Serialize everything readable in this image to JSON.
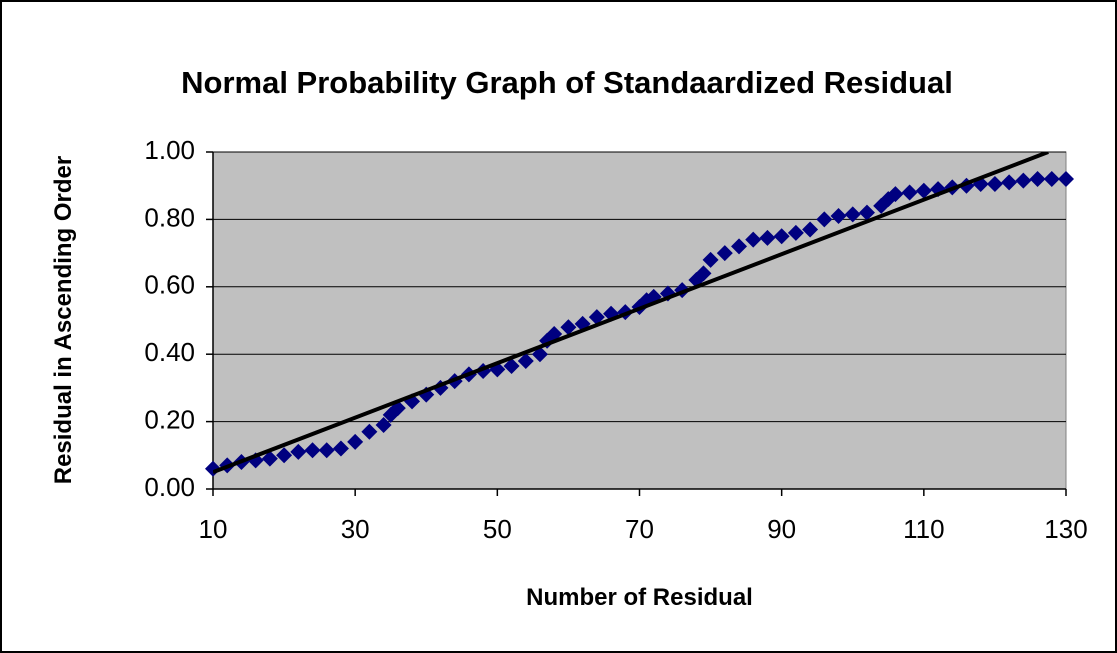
{
  "chart_data": {
    "type": "scatter",
    "title": "Normal Probability Graph of Standaardized Residual",
    "x_label": "Number of Residual",
    "y_label": "Residual in Ascending Order",
    "xlim": [
      10,
      130
    ],
    "xticks": [
      10,
      30,
      50,
      70,
      90,
      110,
      130
    ],
    "ylim": [
      0,
      1
    ],
    "yticks": [
      {
        "value": 0,
        "label": "0.00"
      },
      {
        "value": 0.2,
        "label": "0.20"
      },
      {
        "value": 0.4,
        "label": "0.40"
      },
      {
        "value": 0.6,
        "label": "0.60"
      },
      {
        "value": 0.8,
        "label": "0.80"
      },
      {
        "value": 1,
        "label": "1.00"
      }
    ],
    "grid": true,
    "background": "#c0c0c0",
    "series": [
      {
        "style": "markers",
        "color": "#000080",
        "x": [
          10,
          12,
          14,
          16,
          18,
          20,
          22,
          24,
          26,
          28,
          30,
          32,
          34,
          35,
          36,
          38,
          40,
          42,
          44,
          46,
          48,
          50,
          52,
          54,
          56,
          57,
          58,
          60,
          62,
          64,
          66,
          68,
          70,
          71,
          72,
          74,
          76,
          78,
          79,
          80,
          82,
          84,
          86,
          88,
          90,
          92,
          94,
          96,
          98,
          100,
          102,
          104,
          105,
          106,
          108,
          110,
          112,
          114,
          116,
          118,
          120,
          122,
          124,
          126,
          128,
          130
        ],
        "values": [
          0.06,
          0.07,
          0.08,
          0.085,
          0.09,
          0.1,
          0.11,
          0.115,
          0.115,
          0.12,
          0.14,
          0.17,
          0.19,
          0.22,
          0.24,
          0.26,
          0.28,
          0.3,
          0.32,
          0.34,
          0.35,
          0.355,
          0.365,
          0.38,
          0.4,
          0.44,
          0.46,
          0.48,
          0.49,
          0.51,
          0.52,
          0.525,
          0.54,
          0.56,
          0.57,
          0.58,
          0.59,
          0.62,
          0.64,
          0.68,
          0.7,
          0.72,
          0.74,
          0.745,
          0.75,
          0.76,
          0.77,
          0.8,
          0.81,
          0.815,
          0.82,
          0.84,
          0.86,
          0.875,
          0.88,
          0.885,
          0.89,
          0.895,
          0.9,
          0.905,
          0.905,
          0.91,
          0.915,
          0.92,
          0.92,
          0.92
        ]
      },
      {
        "style": "line",
        "color": "#000000",
        "x": [
          10,
          127.5
        ],
        "values": [
          0.05,
          1.0
        ]
      }
    ]
  }
}
